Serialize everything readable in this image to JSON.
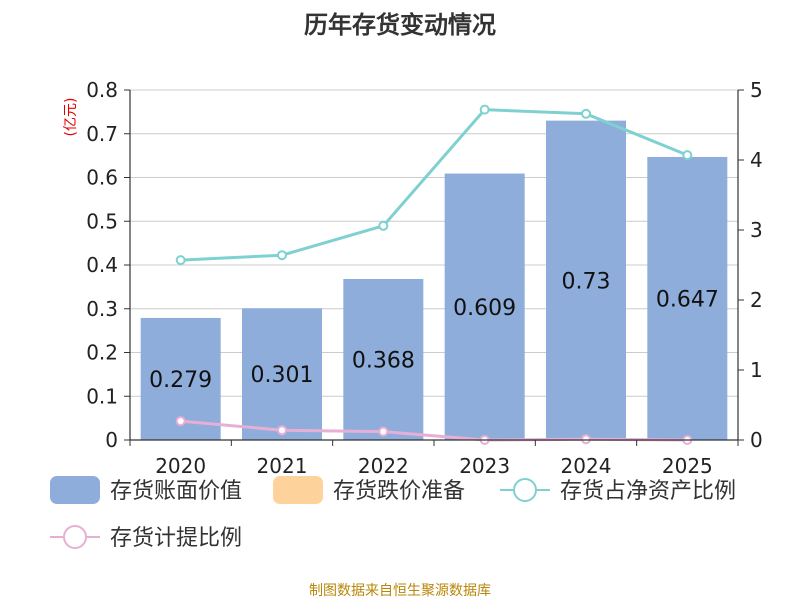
{
  "chart_data": {
    "type": "bar",
    "title": "历年存货变动情况",
    "categories": [
      "2020",
      "2021",
      "2022",
      "2023",
      "2024",
      "2025"
    ],
    "y_left": {
      "unit": "(亿元)",
      "ylim": [
        0,
        0.8
      ],
      "ticks": [
        "0",
        "0.1",
        "0.2",
        "0.3",
        "0.4",
        "0.5",
        "0.6",
        "0.7",
        "0.8"
      ]
    },
    "y_right": {
      "ylim": [
        0,
        5
      ],
      "ticks": [
        "0",
        "1",
        "2",
        "3",
        "4",
        "5"
      ]
    },
    "series": [
      {
        "name": "存货账面价值",
        "type": "bar",
        "axis": "left",
        "color": "#8eadda",
        "values": [
          0.279,
          0.301,
          0.368,
          0.609,
          0.73,
          0.647
        ],
        "labels": [
          "0.279",
          "0.301",
          "0.368",
          "0.609",
          "0.73",
          "0.647"
        ]
      },
      {
        "name": "存货跌价准备",
        "type": "bar",
        "axis": "left",
        "color": "#fdd39b",
        "values": [
          0,
          0,
          0,
          0,
          0,
          0
        ]
      },
      {
        "name": "存货占净资产比例",
        "type": "line",
        "axis": "right",
        "color": "#7fd1d1",
        "values": [
          2.57,
          2.64,
          3.06,
          4.72,
          4.66,
          4.07
        ]
      },
      {
        "name": "存货计提比例",
        "type": "line",
        "axis": "right",
        "color": "#e8afd6",
        "values": [
          0.27,
          0.14,
          0.12,
          0.0,
          0.01,
          0.0
        ]
      }
    ],
    "grid": true,
    "legend_position": "bottom"
  },
  "footer": {
    "source": "制图数据来自恒生聚源数据库"
  }
}
